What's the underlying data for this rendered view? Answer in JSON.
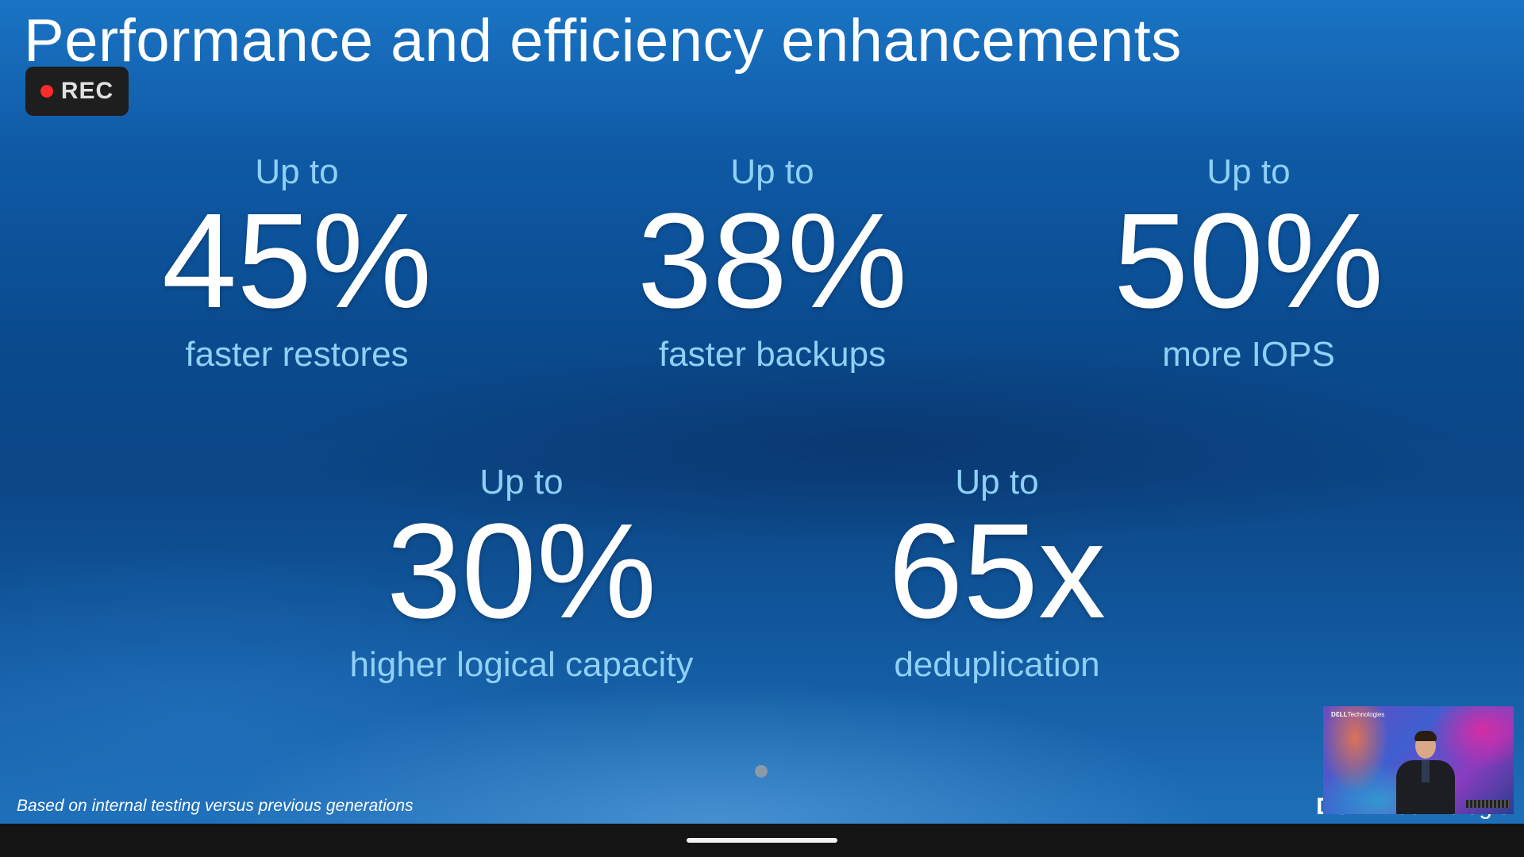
{
  "slide": {
    "title": "Performance and efficiency enhancements",
    "footnote": "Based on internal testing versus previous generations",
    "brand": {
      "bold": "DƐLL",
      "rest": "Technologies"
    },
    "stats": [
      {
        "prefix": "Up to",
        "value": "45%",
        "desc": "faster restores"
      },
      {
        "prefix": "Up to",
        "value": "38%",
        "desc": "faster backups"
      },
      {
        "prefix": "Up to",
        "value": "50%",
        "desc": "more IOPS"
      },
      {
        "prefix": "Up to",
        "value": "30%",
        "desc": "higher logical capacity"
      },
      {
        "prefix": "Up to",
        "value": "65x",
        "desc": "deduplication"
      }
    ]
  },
  "recording": {
    "label": "REC",
    "dot_color": "#ff2a2a"
  },
  "video": {
    "logo_bold": "DƐLL",
    "logo_rest": "Technologies"
  },
  "colors": {
    "accent_text": "#8fd0f6",
    "title": "#ffffff",
    "background": "#0c4a8d"
  }
}
